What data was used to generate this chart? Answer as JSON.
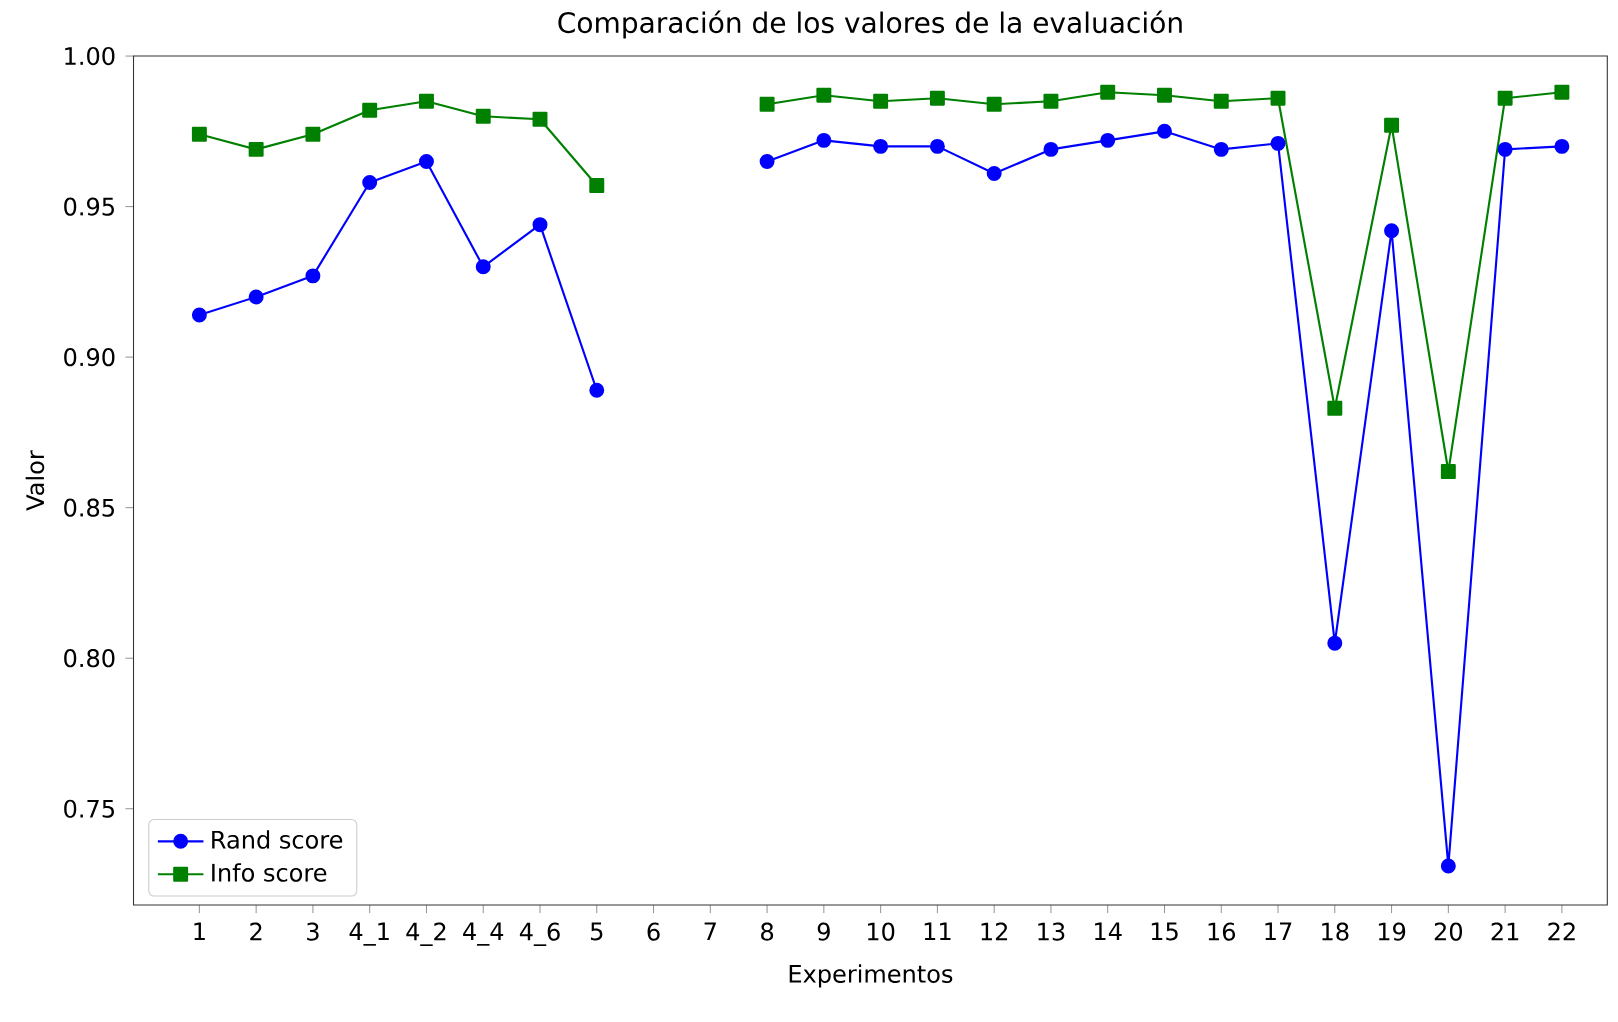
{
  "chart_data": {
    "type": "line",
    "title": "Comparación de los valores de la evaluación",
    "xlabel": "Experimentos",
    "ylabel": "Valor",
    "categories": [
      "1",
      "2",
      "3",
      "4_1",
      "4_2",
      "4_4",
      "4_6",
      "5",
      "6",
      "7",
      "8",
      "9",
      "10",
      "11",
      "12",
      "13",
      "14",
      "15",
      "16",
      "17",
      "18",
      "19",
      "20",
      "21",
      "22"
    ],
    "series": [
      {
        "name": "Rand score",
        "color": "#0000ff",
        "marker": "circle",
        "values": [
          0.914,
          0.92,
          0.927,
          0.958,
          0.965,
          0.93,
          0.944,
          0.889,
          null,
          null,
          0.965,
          0.972,
          0.97,
          0.97,
          0.961,
          0.969,
          0.972,
          0.975,
          0.969,
          0.971,
          0.805,
          0.942,
          0.731,
          0.969,
          0.97
        ]
      },
      {
        "name": "Info score",
        "color": "#008000",
        "marker": "square",
        "values": [
          0.974,
          0.969,
          0.974,
          0.982,
          0.985,
          0.98,
          0.979,
          0.957,
          null,
          null,
          0.984,
          0.987,
          0.985,
          0.986,
          0.984,
          0.985,
          0.988,
          0.987,
          0.985,
          0.986,
          0.883,
          0.977,
          0.862,
          0.986,
          0.988
        ]
      }
    ],
    "ylim": [
      0.718,
      1.0
    ],
    "yticks": [
      {
        "value": 0.75,
        "label": "0.75"
      },
      {
        "value": 0.8,
        "label": "0.80"
      },
      {
        "value": 0.85,
        "label": "0.85"
      },
      {
        "value": 0.9,
        "label": "0.90"
      },
      {
        "value": 0.95,
        "label": "0.95"
      },
      {
        "value": 1.0,
        "label": "1.00"
      }
    ],
    "legend": "bottom left"
  }
}
